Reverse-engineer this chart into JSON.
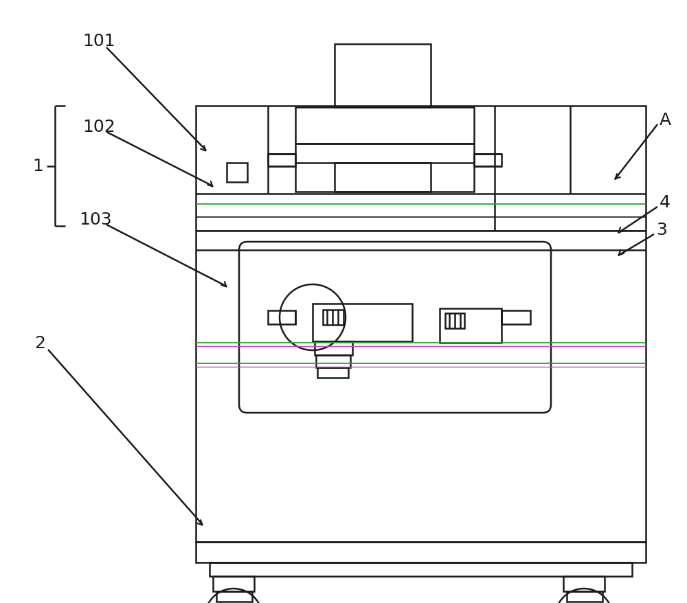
{
  "bg_color": "#ffffff",
  "line_color": "#1a1a1a",
  "lw_main": 1.8,
  "lw_thin": 1.2,
  "purple_line": "#cc44cc",
  "green_line": "#22aa22",
  "figure_size": [
    10.0,
    8.79
  ],
  "dpi": 100
}
